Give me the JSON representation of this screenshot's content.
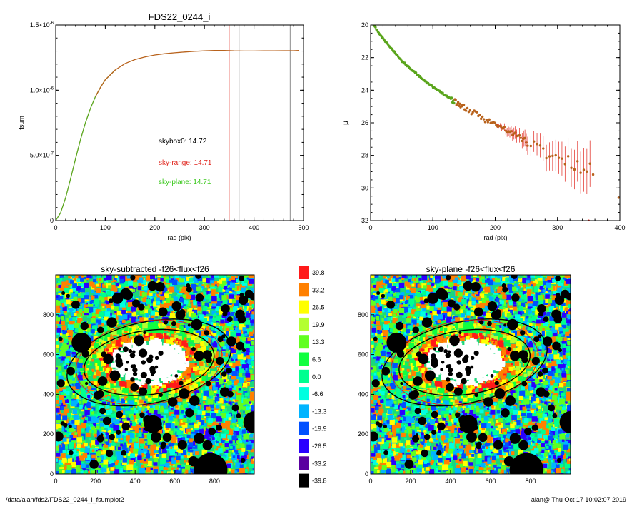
{
  "colors": {
    "curve_orange": "#b8621c",
    "curve_green": "#5aa51c",
    "sky_range": "#e0241c",
    "sky_plane": "#3ac81c",
    "axis": "#000000",
    "vline_gray": "#707070"
  },
  "footer": {
    "path": "/data/alan/fds2/FDS22_0244_i_fsumplot2",
    "stamp": "alan@  Thu Oct 17 10:02:07 2019"
  },
  "chart_data": [
    {
      "type": "line",
      "title": "FDS22_0244_i",
      "xlabel": "rad (pix)",
      "ylabel": "fsum",
      "xlim": [
        0,
        500
      ],
      "ylim": [
        0,
        1.5e-06
      ],
      "xticks": [
        "0",
        "100",
        "200",
        "300",
        "400",
        "500"
      ],
      "yticks": [
        {
          "base": "0",
          "exp": ""
        },
        {
          "base": "5.0×10",
          "exp": "-7"
        },
        {
          "base": "1.0×10",
          "exp": "-6"
        },
        {
          "base": "1.5×10",
          "exp": "-6"
        }
      ],
      "series": [
        {
          "x": [
            0,
            10,
            20,
            30,
            40,
            50,
            60,
            70,
            80,
            90,
            100,
            120,
            140,
            160,
            180,
            200,
            220,
            240,
            260,
            280,
            300,
            320,
            340,
            360,
            380,
            400,
            420,
            440,
            460,
            480,
            490
          ],
          "y": [
            0,
            6e-08,
            1.75e-07,
            3.2e-07,
            4.75e-07,
            6.2e-07,
            7.5e-07,
            8.6e-07,
            9.5e-07,
            1.02e-06,
            1.08e-06,
            1.155e-06,
            1.205e-06,
            1.235e-06,
            1.255e-06,
            1.27e-06,
            1.28e-06,
            1.287e-06,
            1.293e-06,
            1.298e-06,
            1.302e-06,
            1.305e-06,
            1.305e-06,
            1.302e-06,
            1.301e-06,
            1.301e-06,
            1.302e-06,
            1.302e-06,
            1.303e-06,
            1.303e-06,
            1.305e-06
          ]
        }
      ],
      "vlines": [
        {
          "x": 350,
          "color": "sky_range"
        },
        {
          "x": 370,
          "color": "vline_gray"
        },
        {
          "x": 473,
          "color": "vline_gray"
        }
      ],
      "annotations": [
        {
          "text": "skybox0: 14.72",
          "color": "axis"
        },
        {
          "text": "sky-range: 14.71",
          "color": "sky_range"
        },
        {
          "text": "sky-plane: 14.71",
          "color": "sky_plane"
        }
      ]
    },
    {
      "type": "scatter",
      "title": "",
      "xlabel": "rad (pix)",
      "ylabel": "μ",
      "xlim": [
        0,
        400
      ],
      "ylim": [
        32,
        20
      ],
      "xticks": [
        "0",
        "100",
        "200",
        "300",
        "400"
      ],
      "yticks": [
        "20",
        "22",
        "24",
        "26",
        "28",
        "30",
        "32"
      ],
      "profile": {
        "x": [
          5,
          15,
          30,
          50,
          80,
          100,
          120,
          140,
          160,
          180,
          200,
          220,
          240,
          260,
          280,
          300,
          320,
          340,
          355
        ],
        "y": [
          20.0,
          20.6,
          21.3,
          22.2,
          23.2,
          23.8,
          24.3,
          24.8,
          25.3,
          25.7,
          26.1,
          26.5,
          26.9,
          27.3,
          27.8,
          28.1,
          28.5,
          28.9,
          28.9
        ]
      }
    },
    {
      "type": "heatmap",
      "title": "sky-subtracted -f26<flux<f26",
      "xlim": [
        0,
        1000
      ],
      "ylim": [
        0,
        1000
      ],
      "xticks": [
        "0",
        "200",
        "400",
        "600",
        "800"
      ],
      "yticks": [
        "0",
        "200",
        "400",
        "600",
        "800"
      ]
    },
    {
      "type": "heatmap",
      "title": "sky-plane -f26<flux<f26",
      "xlim": [
        0,
        1000
      ],
      "ylim": [
        0,
        1000
      ],
      "xticks": [
        "0",
        "200",
        "400",
        "600",
        "800"
      ],
      "yticks": [
        "0",
        "200",
        "400",
        "600",
        "800"
      ]
    },
    {
      "type": "colorbar",
      "labels": [
        "39.8",
        "33.2",
        "26.5",
        "19.9",
        "13.3",
        "6.6",
        "0.0",
        "-6.6",
        "-13.3",
        "-19.9",
        "-26.5",
        "-33.2",
        "-39.8"
      ],
      "colors": [
        "#ff1a1a",
        "#ff8000",
        "#ffff00",
        "#b4ff30",
        "#60ff20",
        "#10ff40",
        "#00ff90",
        "#00ffe0",
        "#00b4ff",
        "#0050ff",
        "#2a00ff",
        "#5a00a0",
        "#000000"
      ]
    }
  ]
}
